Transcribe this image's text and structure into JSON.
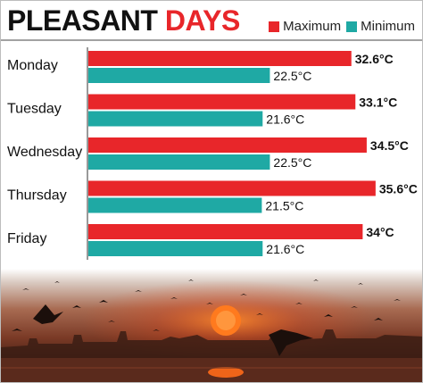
{
  "header": {
    "title_word1": "PLEASANT",
    "title_word2": "DAYS"
  },
  "legend": {
    "maximum_label": "Maximum",
    "minimum_label": "Minimum"
  },
  "colors": {
    "maximum": "#e8262a",
    "minimum": "#1fa9a4",
    "title_accent": "#e8262a"
  },
  "chart_data": {
    "type": "bar",
    "orientation": "horizontal",
    "title": "PLEASANT DAYS",
    "categories": [
      "Monday",
      "Tuesday",
      "Wednesday",
      "Thursday",
      "Friday"
    ],
    "series": [
      {
        "name": "Maximum",
        "values": [
          32.6,
          33.1,
          34.5,
          35.6,
          34
        ],
        "labels": [
          "32.6°C",
          "33.1°C",
          "34.5°C",
          "35.6°C",
          "34°C"
        ]
      },
      {
        "name": "Minimum",
        "values": [
          22.5,
          21.6,
          22.5,
          21.5,
          21.6
        ],
        "labels": [
          "22.5°C",
          "21.6°C",
          "22.5°C",
          "21.5°C",
          "21.6°C"
        ]
      }
    ],
    "unit": "°C",
    "xlim": [
      0,
      36.5
    ],
    "grid": false,
    "legend_position": "top-right"
  }
}
